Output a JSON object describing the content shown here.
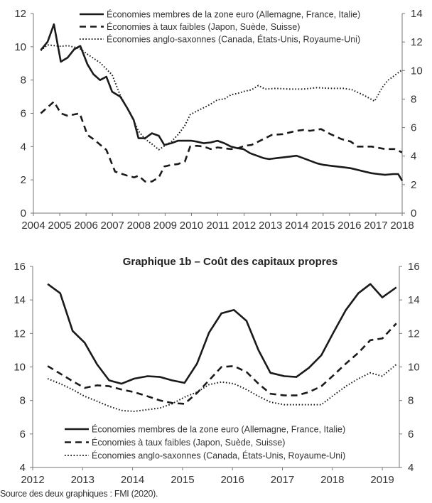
{
  "chart_data": [
    {
      "type": "line",
      "title": "",
      "xlabel": "",
      "ylabel": "",
      "xlim": [
        2004,
        2018
      ],
      "ylim_left": [
        0,
        12
      ],
      "ylim_right": [
        0,
        14
      ],
      "x_ticks": [
        "2004",
        "2005",
        "2006",
        "2007",
        "2008",
        "2009",
        "2010",
        "2011",
        "2012",
        "2013",
        "2014",
        "2015",
        "2016",
        "2017",
        "2018"
      ],
      "y_ticks_left": [
        "0",
        "2",
        "4",
        "6",
        "8",
        "10",
        "12"
      ],
      "y_ticks_right": [
        "0",
        "2",
        "4",
        "6",
        "8",
        "10",
        "12",
        "14"
      ],
      "grid": false,
      "legend_position": "top-right",
      "series": [
        {
          "name": "Économies membres de la zone euro (Allemagne, France, Italie)",
          "style": "solid",
          "axis": "left",
          "x": [
            2004.28,
            2004.54,
            2004.78,
            2005.04,
            2005.3,
            2005.55,
            2005.78,
            2006.05,
            2006.28,
            2006.53,
            2006.77,
            2006.99,
            2007.3,
            2007.57,
            2007.81,
            2007.99,
            2008.24,
            2008.5,
            2008.76,
            2008.97,
            2009.23,
            2009.49,
            2010.0,
            2010.2,
            2010.47,
            2010.73,
            2010.99,
            2011.25,
            2011.5,
            2011.76,
            2011.97,
            2012.23,
            2012.49,
            2012.75,
            2012.95,
            2013.21,
            2013.47,
            2013.73,
            2013.99,
            2014.25,
            2014.5,
            2014.76,
            2015.02,
            2015.28,
            2015.54,
            2015.8,
            2016.05,
            2016.31,
            2016.57,
            2016.84,
            2017.09,
            2017.35,
            2017.66,
            2017.85,
            2018.0
          ],
          "y": [
            9.8,
            10.3,
            11.35,
            9.1,
            9.35,
            9.85,
            10.05,
            8.95,
            8.35,
            8.0,
            8.2,
            7.3,
            7.0,
            6.3,
            5.6,
            4.5,
            4.5,
            4.8,
            4.65,
            4.1,
            4.2,
            4.35,
            4.35,
            4.3,
            4.2,
            4.25,
            4.35,
            4.2,
            4.0,
            3.9,
            3.85,
            3.6,
            3.45,
            3.3,
            3.25,
            3.3,
            3.35,
            3.4,
            3.45,
            3.3,
            3.15,
            3.0,
            2.9,
            2.85,
            2.8,
            2.75,
            2.7,
            2.6,
            2.5,
            2.4,
            2.35,
            2.3,
            2.35,
            2.35,
            1.95
          ]
        },
        {
          "name": "Économies à taux faibles (Japon, Suède, Suisse)",
          "style": "dashed",
          "axis": "left",
          "x": [
            2004.28,
            2004.78,
            2005.04,
            2005.3,
            2005.76,
            2006.05,
            2006.28,
            2006.77,
            2007.1,
            2007.57,
            2007.83,
            2007.99,
            2008.24,
            2008.5,
            2008.76,
            2008.97,
            2009.23,
            2009.49,
            2009.75,
            2009.95,
            2010.2,
            2010.47,
            2010.73,
            2010.99,
            2011.25,
            2011.5,
            2011.76,
            2012.02,
            2012.28,
            2012.54,
            2012.8,
            2013.05,
            2013.47,
            2013.99,
            2014.25,
            2014.5,
            2014.92,
            2015.28,
            2015.7,
            2016.05,
            2016.31,
            2016.84,
            2017.35,
            2017.71,
            2018.0
          ],
          "y": [
            6.0,
            6.7,
            6.0,
            5.85,
            6.0,
            4.7,
            4.45,
            3.8,
            2.5,
            2.25,
            2.15,
            2.25,
            1.9,
            1.9,
            2.15,
            2.8,
            2.9,
            2.95,
            3.1,
            4.0,
            4.05,
            4.0,
            3.85,
            3.95,
            3.9,
            3.85,
            3.9,
            4.05,
            4.1,
            4.3,
            4.5,
            4.7,
            4.75,
            4.95,
            5.0,
            4.95,
            5.05,
            4.75,
            4.45,
            4.3,
            4.0,
            4.0,
            3.85,
            3.85,
            3.65
          ]
        },
        {
          "name": "Économies anglo-saxonnes (Canada, États-Unis, Royaume-Uni)",
          "style": "dotted",
          "axis": "right",
          "x": [
            2004.28,
            2004.54,
            2005.04,
            2005.3,
            2005.76,
            2006.05,
            2006.53,
            2006.99,
            2007.3,
            2007.57,
            2007.83,
            2007.99,
            2008.24,
            2008.5,
            2008.76,
            2008.97,
            2009.23,
            2009.49,
            2009.75,
            2009.95,
            2010.2,
            2010.47,
            2010.73,
            2010.99,
            2011.25,
            2011.5,
            2011.76,
            2012.02,
            2012.28,
            2012.54,
            2012.8,
            2013.21,
            2013.73,
            2014.25,
            2014.76,
            2015.28,
            2015.8,
            2016.1,
            2016.57,
            2016.95,
            2017.24,
            2017.45,
            2017.71,
            2018.0
          ],
          "y": [
            11.4,
            11.8,
            11.7,
            11.75,
            11.55,
            11.15,
            10.55,
            9.7,
            8.25,
            7.35,
            6.4,
            5.75,
            5.2,
            4.85,
            4.45,
            4.7,
            5.0,
            5.5,
            6.15,
            6.9,
            7.15,
            7.4,
            7.65,
            7.95,
            8.0,
            8.3,
            8.4,
            8.55,
            8.65,
            8.95,
            8.7,
            8.75,
            8.7,
            8.7,
            8.8,
            8.75,
            8.75,
            8.65,
            8.25,
            7.85,
            8.8,
            9.3,
            9.65,
            10.05
          ]
        }
      ]
    },
    {
      "type": "line",
      "title": "Graphique 1b – Coût des capitaux propres",
      "xlabel": "",
      "ylabel": "",
      "xlim": [
        2012,
        2019.34
      ],
      "ylim_left": [
        4,
        16
      ],
      "ylim_right": [
        4,
        16
      ],
      "x_ticks": [
        "2012",
        "2013",
        "2014",
        "2015",
        "2016",
        "2017",
        "2018",
        "2019"
      ],
      "y_ticks_left": [
        "4",
        "6",
        "8",
        "10",
        "12",
        "14",
        "16"
      ],
      "y_ticks_right": [
        "4",
        "6",
        "8",
        "10",
        "12",
        "14",
        "16"
      ],
      "grid": false,
      "legend_position": "bottom-center",
      "series": [
        {
          "name": "Économies membres de la zone euro (Allemagne, France, Italie)",
          "style": "solid",
          "axis": "left",
          "x": [
            2012.3,
            2012.55,
            2012.8,
            2013.04,
            2013.29,
            2013.53,
            2013.78,
            2014.03,
            2014.3,
            2014.55,
            2014.79,
            2015.04,
            2015.29,
            2015.53,
            2015.78,
            2016.03,
            2016.28,
            2016.52,
            2016.76,
            2017.04,
            2017.28,
            2017.53,
            2017.78,
            2018.02,
            2018.27,
            2018.52,
            2018.76,
            2019.0,
            2019.28
          ],
          "y": [
            14.95,
            14.4,
            12.15,
            11.45,
            10.15,
            9.2,
            9.0,
            9.3,
            9.45,
            9.4,
            9.2,
            9.05,
            10.2,
            12.05,
            13.2,
            13.4,
            12.75,
            11.0,
            9.65,
            9.45,
            9.4,
            9.95,
            10.7,
            12.05,
            13.4,
            14.4,
            14.95,
            14.15,
            14.75
          ]
        },
        {
          "name": "Économies à taux faibles (Japon, Suède, Suisse)",
          "style": "dashed",
          "axis": "left",
          "x": [
            2012.3,
            2012.55,
            2012.8,
            2013.04,
            2013.29,
            2013.53,
            2013.78,
            2014.03,
            2014.3,
            2014.55,
            2014.79,
            2015.04,
            2015.29,
            2015.53,
            2015.78,
            2016.03,
            2016.28,
            2016.52,
            2016.76,
            2017.04,
            2017.28,
            2017.53,
            2017.78,
            2018.02,
            2018.27,
            2018.52,
            2018.76,
            2019.0,
            2019.28
          ],
          "y": [
            10.05,
            9.6,
            9.15,
            8.75,
            8.9,
            8.85,
            8.65,
            8.5,
            8.25,
            8.0,
            7.85,
            7.8,
            8.45,
            9.2,
            10.0,
            10.05,
            9.7,
            9.0,
            8.4,
            8.3,
            8.3,
            8.5,
            8.85,
            9.5,
            10.2,
            10.85,
            11.6,
            11.7,
            12.6
          ]
        },
        {
          "name": "Économies anglo-saxonnes (Canada, États-Unis, Royaume-Uni)",
          "style": "dotted",
          "axis": "left",
          "x": [
            2012.3,
            2012.55,
            2012.8,
            2013.04,
            2013.29,
            2013.53,
            2013.78,
            2014.03,
            2014.3,
            2014.55,
            2014.79,
            2015.04,
            2015.29,
            2015.53,
            2015.78,
            2016.03,
            2016.28,
            2016.52,
            2016.76,
            2017.04,
            2017.28,
            2017.53,
            2017.78,
            2018.02,
            2018.27,
            2018.52,
            2018.76,
            2019.0,
            2019.28
          ],
          "y": [
            9.3,
            9.0,
            8.65,
            8.25,
            7.95,
            7.65,
            7.4,
            7.35,
            7.45,
            7.55,
            7.8,
            8.2,
            8.5,
            8.95,
            9.1,
            9.0,
            8.65,
            8.25,
            7.9,
            7.75,
            7.75,
            7.75,
            7.75,
            8.3,
            8.85,
            9.3,
            9.65,
            9.45,
            10.15
          ]
        }
      ]
    }
  ],
  "source": "Source des deux graphiques : FMI (2020)."
}
